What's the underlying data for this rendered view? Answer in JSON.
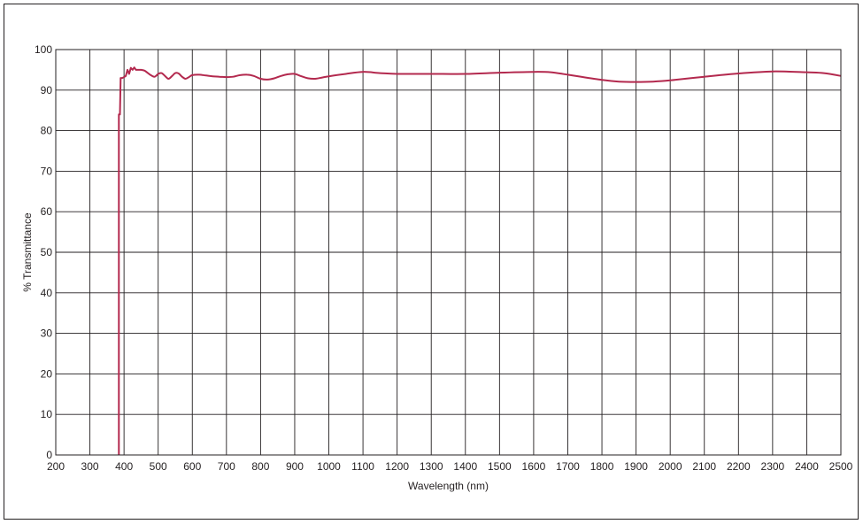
{
  "chart_data": {
    "type": "line",
    "title": "",
    "xlabel": "Wavelength (nm)",
    "ylabel": "% Transmittance",
    "xlim": [
      200,
      2500
    ],
    "ylim": [
      0,
      100
    ],
    "x_ticks": [
      "200",
      "300",
      "400",
      "500",
      "600",
      "700",
      "800",
      "900",
      "1000",
      "1100",
      "1200",
      "1300",
      "1400",
      "1500",
      "1600",
      "1700",
      "1800",
      "1900",
      "2000",
      "2100",
      "2200",
      "2300",
      "2400",
      "2500"
    ],
    "y_ticks": [
      "0",
      "10",
      "20",
      "30",
      "40",
      "50",
      "60",
      "70",
      "80",
      "90",
      "100"
    ],
    "grid": true,
    "line_color": "#b3294e",
    "series": [
      {
        "x": [
          385,
          385,
          388,
          390,
          392,
          395,
          400,
          405,
          410,
          415,
          420,
          425,
          430,
          435,
          440,
          450,
          460,
          470,
          480,
          490,
          500,
          510,
          520,
          530,
          540,
          550,
          560,
          570,
          580,
          590,
          600,
          620,
          640,
          660,
          680,
          700,
          720,
          740,
          760,
          780,
          800,
          820,
          840,
          860,
          880,
          900,
          920,
          940,
          960,
          980,
          1000,
          1050,
          1100,
          1150,
          1200,
          1300,
          1400,
          1500,
          1600,
          1650,
          1700,
          1800,
          1850,
          1900,
          1950,
          2000,
          2100,
          2200,
          2300,
          2400,
          2450,
          2500
        ],
        "y": [
          0,
          84,
          84,
          93,
          93,
          93,
          93.2,
          93.5,
          95,
          94,
          95.5,
          95,
          95.6,
          95,
          95,
          95,
          94.8,
          94.2,
          93.6,
          93.3,
          94,
          94.2,
          93.5,
          92.8,
          93.4,
          94.2,
          94.1,
          93.3,
          92.8,
          93.2,
          93.7,
          93.8,
          93.6,
          93.4,
          93.3,
          93.2,
          93.3,
          93.7,
          93.8,
          93.5,
          92.8,
          92.6,
          92.9,
          93.5,
          93.9,
          94,
          93.4,
          92.9,
          92.8,
          93.1,
          93.4,
          94,
          94.5,
          94.2,
          94,
          94,
          94,
          94.3,
          94.5,
          94.4,
          93.8,
          92.5,
          92.1,
          92,
          92.1,
          92.4,
          93.3,
          94.1,
          94.6,
          94.4,
          94.2,
          93.5
        ]
      }
    ]
  }
}
